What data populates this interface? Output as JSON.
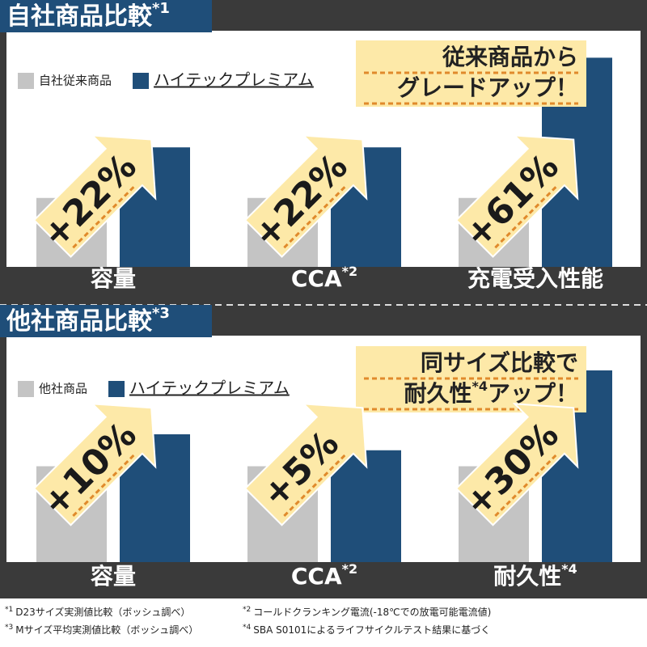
{
  "chart_data": [
    {
      "type": "bar",
      "title": "自社商品比較",
      "title_note": "*1",
      "categories": [
        "容量",
        "CCA",
        "充電受入性能"
      ],
      "category_notes": [
        null,
        "*2",
        null
      ],
      "series": [
        {
          "name": "自社従来商品",
          "color": "#c4c4c4",
          "values": [
            100,
            100,
            100
          ]
        },
        {
          "name": "ハイテックプレミアム",
          "color": "#1f4e79",
          "values": [
            122,
            122,
            161
          ]
        }
      ],
      "annotations": [
        "+22%",
        "+22%",
        "+61%"
      ],
      "callout": [
        [
          "従来商品から"
        ],
        [
          "グレードアップ！"
        ]
      ],
      "ylim": [
        70,
        165
      ]
    },
    {
      "type": "bar",
      "title": "他社商品比較",
      "title_note": "*3",
      "categories": [
        "容量",
        "CCA",
        "耐久性"
      ],
      "category_notes": [
        null,
        "*2",
        "*4"
      ],
      "series": [
        {
          "name": "他社商品",
          "color": "#c4c4c4",
          "values": [
            100,
            100,
            100
          ]
        },
        {
          "name": "ハイテックプレミアム",
          "color": "#1f4e79",
          "values": [
            110,
            105,
            130
          ]
        }
      ],
      "annotations": [
        "+10%",
        "+5%",
        "+30%"
      ],
      "callout": [
        [
          "同サイズ比較で"
        ],
        [
          "耐久性",
          "*4",
          "アップ！"
        ]
      ],
      "ylim": [
        70,
        130
      ]
    }
  ],
  "footnotes": [
    {
      "mark": "*1",
      "text": "D23サイズ実測値比較（ボッシュ調べ）"
    },
    {
      "mark": "*2",
      "text": "コールドクランキング電流(-18℃での放電可能電流値)"
    },
    {
      "mark": "*3",
      "text": "Mサイズ平均実測値比較（ボッシュ調べ）"
    },
    {
      "mark": "*4",
      "text": "SBA S0101によるライフサイクルテスト結果に基づく"
    }
  ]
}
